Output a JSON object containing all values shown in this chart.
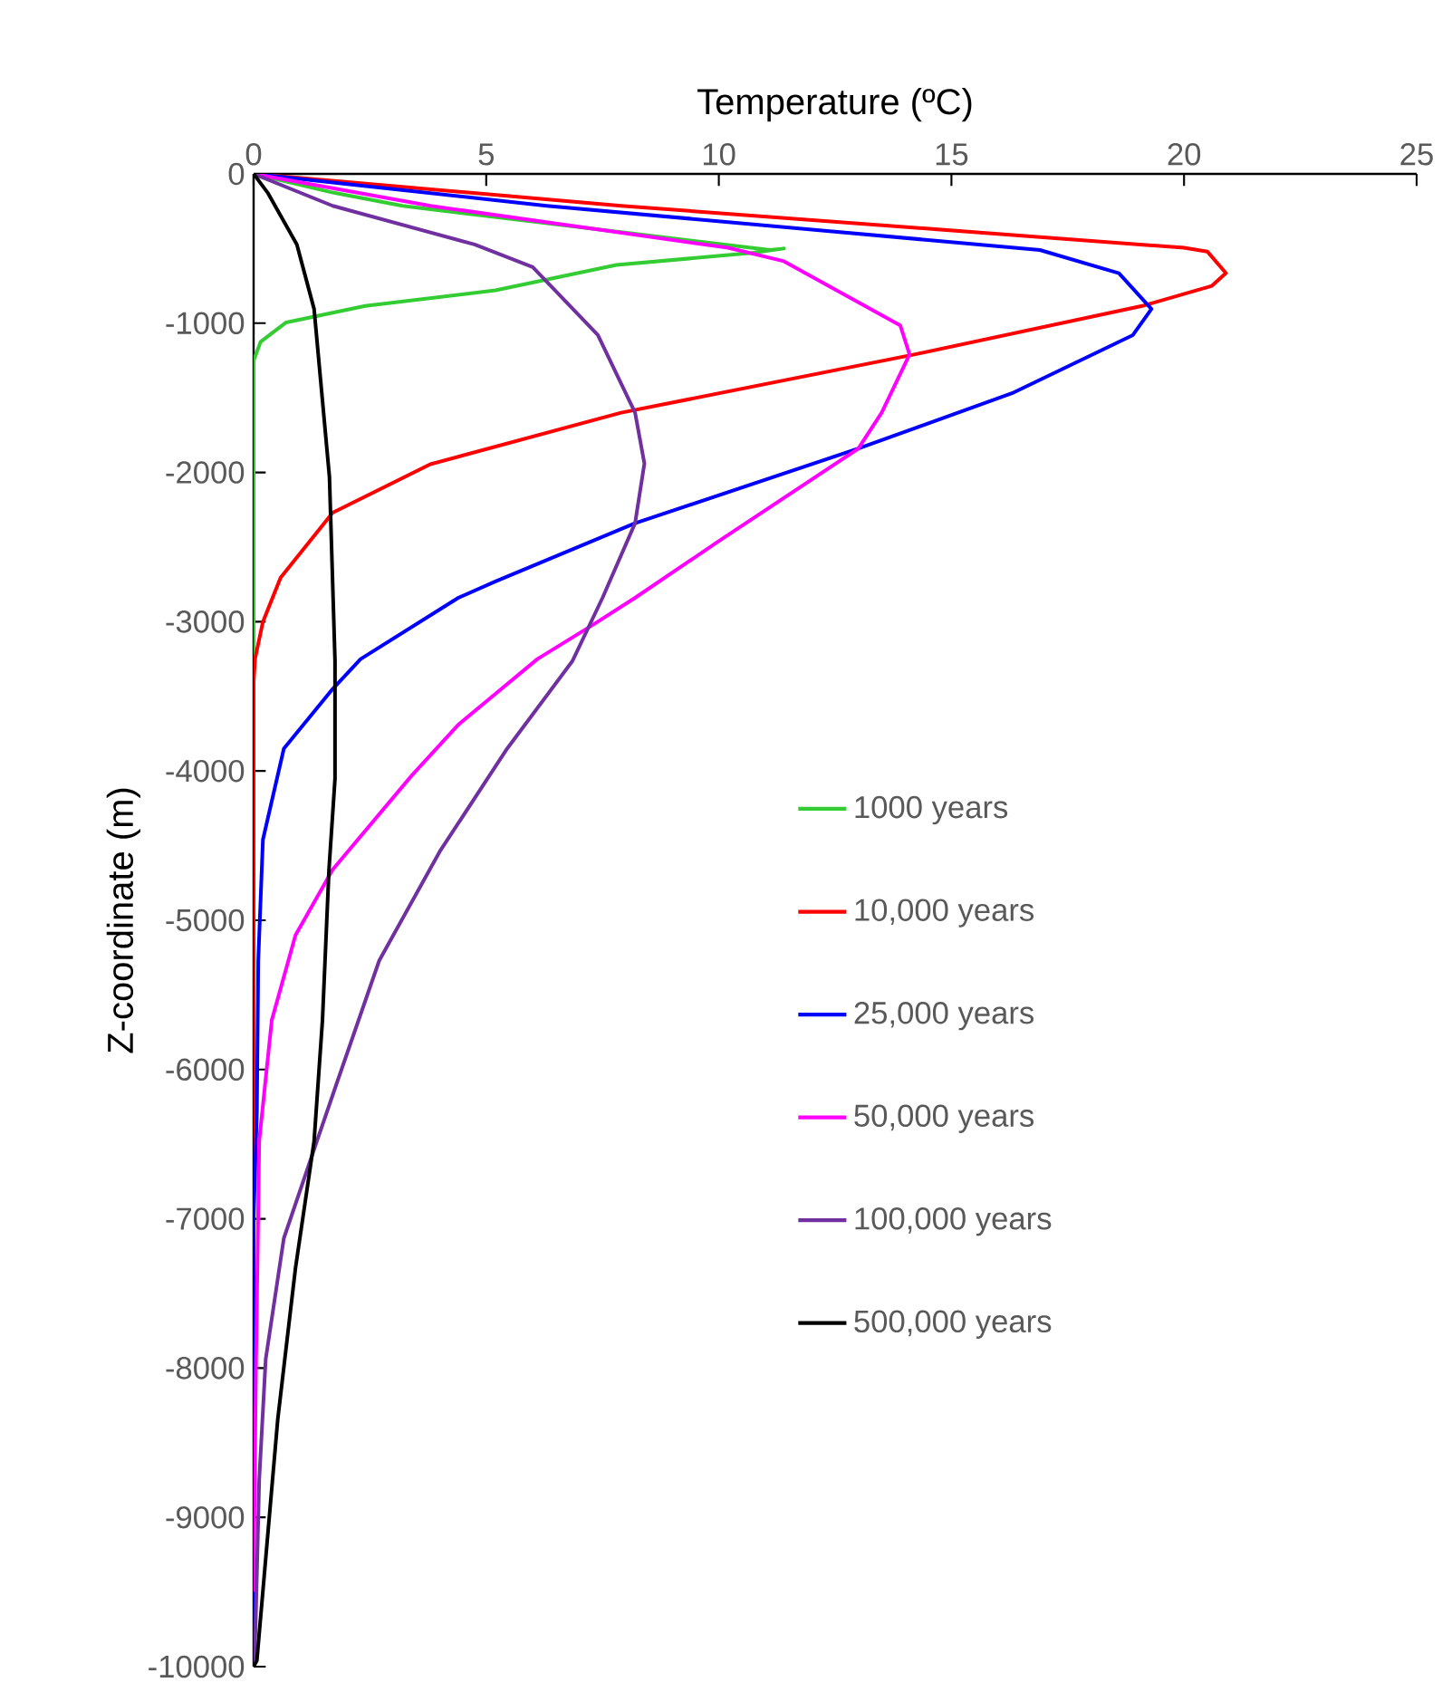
{
  "chart_data": {
    "type": "line",
    "xlabel": "Temperature (ºC)",
    "ylabel": "Z-coordinate (m)",
    "xlim": [
      0,
      25
    ],
    "xticks": [
      0,
      5,
      10,
      15,
      20,
      25
    ],
    "ylim": [
      -10000,
      0
    ],
    "yticks": [
      -10000,
      -9000,
      -8000,
      -7000,
      -6000,
      -5000,
      -4000,
      -3000,
      -2000,
      -1000,
      0
    ],
    "legend": "right",
    "grid": false,
    "series": [
      {
        "name": "1000 years",
        "color": "#33cc33",
        "x": [
          0,
          1.7,
          3.2,
          11.1,
          11.4,
          10.7,
          7.8,
          5.2,
          2.4,
          0.7,
          0.15,
          0,
          0
        ],
        "values": [
          0,
          -125,
          -214,
          -510,
          -500,
          -530,
          -610,
          -780,
          -885,
          -995,
          -1125,
          -1250,
          -10000
        ]
      },
      {
        "name": "10,000 years",
        "color": "#ff0000",
        "x": [
          0,
          7.9,
          20.0,
          20.5,
          20.9,
          20.6,
          19.1,
          14.2,
          7.9,
          3.8,
          1.7,
          0.58,
          0.2,
          0.03,
          0,
          0
        ],
        "values": [
          0,
          -214,
          -495,
          -520,
          -665,
          -750,
          -885,
          -1210,
          -1600,
          -1945,
          -2270,
          -2705,
          -3000,
          -3250,
          -3400,
          -10000
        ]
      },
      {
        "name": "25,000 years",
        "color": "#0000ff",
        "x": [
          0,
          6.3,
          16.9,
          18.6,
          19.3,
          18.9,
          16.3,
          13.0,
          8.2,
          5.2,
          4.4,
          2.3,
          1.7,
          0.65,
          0.2,
          0.1,
          0.07,
          0,
          0
        ],
        "values": [
          0,
          -214,
          -510,
          -665,
          -905,
          -1080,
          -1470,
          -1840,
          -2340,
          -2730,
          -2840,
          -3250,
          -3450,
          -3850,
          -4460,
          -5270,
          -6280,
          -7000,
          -10000
        ]
      },
      {
        "name": "50,000 years",
        "color": "#ff00ff",
        "x": [
          0,
          3.8,
          10.2,
          11.4,
          13.9,
          14.1,
          13.5,
          13.0,
          10.0,
          8.2,
          7.3,
          6.1,
          4.4,
          3.4,
          1.7,
          0.9,
          0.39,
          0.12,
          0.05,
          0
        ],
        "values": [
          0,
          -214,
          -495,
          -585,
          -1015,
          -1210,
          -1600,
          -1840,
          -2460,
          -2840,
          -3020,
          -3250,
          -3690,
          -4030,
          -4660,
          -5100,
          -5670,
          -6480,
          -8000,
          -9500
        ]
      },
      {
        "name": "100,000 years",
        "color": "#7030a0",
        "x": [
          0,
          1.7,
          4.75,
          6.0,
          7.4,
          8.2,
          8.4,
          8.2,
          7.5,
          6.85,
          5.45,
          4.0,
          2.7,
          1.8,
          1.36,
          0.65,
          0.26,
          0.12,
          0.04,
          0
        ],
        "values": [
          0,
          -214,
          -473,
          -625,
          -1080,
          -1600,
          -1940,
          -2340,
          -2840,
          -3265,
          -3850,
          -4540,
          -5270,
          -6080,
          -6480,
          -7130,
          -7940,
          -8750,
          -9760,
          -10000
        ]
      },
      {
        "name": "500,000 years",
        "color": "#000000",
        "x": [
          0,
          0.3,
          0.93,
          1.3,
          1.63,
          1.75,
          1.75,
          1.62,
          1.48,
          1.3,
          0.9,
          0.52,
          0.07,
          0
        ],
        "values": [
          0,
          -125,
          -473,
          -905,
          -2030,
          -3265,
          -4050,
          -4660,
          -5670,
          -6480,
          -7330,
          -8340,
          -9960,
          -10000
        ]
      }
    ]
  }
}
